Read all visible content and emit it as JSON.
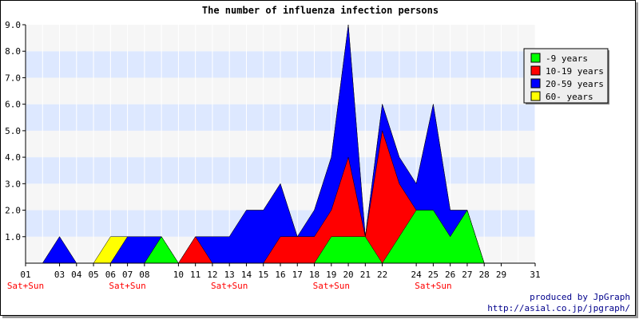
{
  "chart_data": {
    "type": "area",
    "title": "The number of influenza infection persons",
    "categories": [
      "01",
      "02",
      "03",
      "04",
      "05",
      "06",
      "07",
      "08",
      "09",
      "10",
      "11",
      "12",
      "13",
      "14",
      "15",
      "16",
      "17",
      "18",
      "19",
      "20",
      "21",
      "22",
      "23",
      "24",
      "25",
      "26",
      "27",
      "28",
      "29",
      "30",
      "31"
    ],
    "tick_labels": [
      "01",
      "03",
      "04",
      "05",
      "06",
      "07",
      "08",
      "10",
      "11",
      "12",
      "13",
      "14",
      "15",
      "16",
      "17",
      "18",
      "19",
      "20",
      "21",
      "22",
      "24",
      "25",
      "26",
      "27",
      "28",
      "29",
      "31"
    ],
    "weekend_markers": [
      {
        "day": "01",
        "label": "Sat+Sun"
      },
      {
        "day": "07",
        "label": "Sat+Sun"
      },
      {
        "day": "13",
        "label": "Sat+Sun"
      },
      {
        "day": "19",
        "label": "Sat+Sun"
      },
      {
        "day": "25",
        "label": "Sat+Sun"
      }
    ],
    "ylim": [
      0,
      9
    ],
    "yticks": [
      "1.0",
      "2.0",
      "3.0",
      "4.0",
      "5.0",
      "6.0",
      "7.0",
      "8.0",
      "9.0"
    ],
    "stacked": true,
    "series": [
      {
        "name": "-9 years",
        "color": "#00ff00",
        "values": [
          0,
          0,
          0,
          0,
          0,
          0,
          0,
          0,
          1,
          0,
          0,
          0,
          0,
          0,
          0,
          0,
          0,
          0,
          1,
          1,
          1,
          0,
          1,
          2,
          2,
          1,
          2,
          0,
          0,
          0,
          0
        ]
      },
      {
        "name": "10-19 years",
        "color": "#ff0000",
        "values": [
          0,
          0,
          0,
          0,
          0,
          0,
          0,
          0,
          0,
          0,
          1,
          0,
          0,
          0,
          0,
          1,
          1,
          1,
          1,
          3,
          0,
          5,
          2,
          0,
          0,
          0,
          0,
          0,
          0,
          0,
          0
        ]
      },
      {
        "name": "20-59 years",
        "color": "#0000ff",
        "values": [
          0,
          0,
          1,
          0,
          0,
          0,
          1,
          1,
          0,
          0,
          0,
          1,
          1,
          2,
          2,
          2,
          0,
          1,
          2,
          5,
          0,
          1,
          1,
          1,
          4,
          1,
          0,
          0,
          0,
          0,
          0
        ]
      },
      {
        "name": "60- years",
        "color": "#ffff00",
        "values": [
          0,
          0,
          0,
          0,
          0,
          1,
          0,
          0,
          0,
          0,
          0,
          0,
          0,
          0,
          0,
          0,
          0,
          0,
          0,
          0,
          0,
          0,
          0,
          0,
          0,
          0,
          0,
          0,
          0,
          0,
          0
        ]
      }
    ],
    "legend": "top-right",
    "legend_order": [
      "-9 years",
      "10-19 years",
      "20-59 years",
      "60- years"
    ],
    "grid": true,
    "band_colors": [
      "#f6f6f6",
      "#dde8ff"
    ],
    "weekend_color": "#ff0000",
    "credit": [
      "produced by JpGraph",
      "http://asial.co.jp/jpgraph/"
    ]
  }
}
